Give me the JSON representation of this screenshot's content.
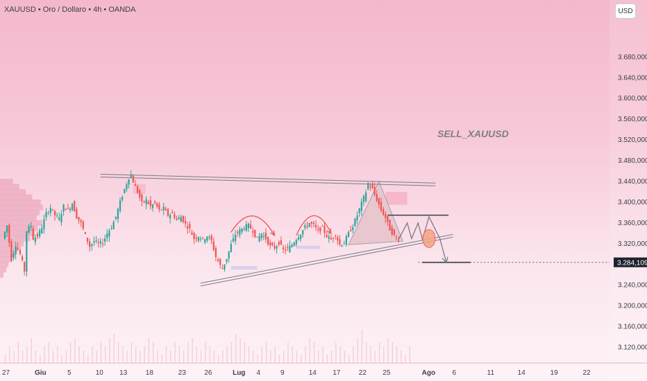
{
  "header": {
    "symbol_line": "XAUUSD • Oro / Dollaro • 4h • OANDA",
    "currency_button": "USD"
  },
  "colors": {
    "bull": "#26a69a",
    "bear": "#ef5350",
    "annotation": "#9598a1",
    "drawing_line": "#787b86",
    "price_tag": "#1e222d",
    "accent_fill": "#f2c4cf"
  },
  "chart_data": {
    "type": "candlestick",
    "symbol": "XAUUSD",
    "title": "XAUUSD • Oro / Dollaro • 4h • OANDA",
    "timeframe": "4h",
    "currency": "USD",
    "ylim": [
      3090,
      3790
    ],
    "y_ticks": [
      "3.680,000",
      "3.640,000",
      "3.600,000",
      "3.560,000",
      "3.520,000",
      "3.480,000",
      "3.440,000",
      "3.400,000",
      "3.360,000",
      "3.320,000",
      "3.240,000",
      "3.200,000",
      "3.160,000",
      "3.120,000"
    ],
    "y_tick_values": [
      3680,
      3640,
      3600,
      3560,
      3520,
      3480,
      3440,
      3400,
      3360,
      3320,
      3240,
      3200,
      3160,
      3120
    ],
    "x_ticks": [
      "27",
      "Giu",
      "5",
      "10",
      "13",
      "18",
      "23",
      "26",
      "Lug",
      "4",
      "9",
      "14",
      "17",
      "22",
      "25",
      "Ago",
      "6",
      "11",
      "14",
      "19",
      "22"
    ],
    "x_tick_bold": [
      "Giu",
      "Lug",
      "Ago"
    ],
    "x_tick_index": [
      0,
      15,
      30,
      43,
      54,
      66,
      81,
      93,
      106,
      117,
      128,
      141,
      152,
      164,
      175,
      193,
      207,
      223,
      237,
      252,
      267
    ],
    "last_price_label": "3.284,109",
    "last_price": 3284.1,
    "annotation_text": "SELL_XAUUSD",
    "ohlc_path": [
      [
        0,
        3330
      ],
      [
        2,
        3355
      ],
      [
        4,
        3290
      ],
      [
        6,
        3318
      ],
      [
        8,
        3300
      ],
      [
        10,
        3268
      ],
      [
        11,
        3345
      ],
      [
        13,
        3355
      ],
      [
        14,
        3330
      ],
      [
        16,
        3335
      ],
      [
        18,
        3352
      ],
      [
        20,
        3378
      ],
      [
        22,
        3390
      ],
      [
        24,
        3375
      ],
      [
        26,
        3368
      ],
      [
        28,
        3392
      ],
      [
        30,
        3385
      ],
      [
        32,
        3398
      ],
      [
        34,
        3372
      ],
      [
        36,
        3360
      ],
      [
        38,
        3336
      ],
      [
        40,
        3315
      ],
      [
        42,
        3325
      ],
      [
        44,
        3320
      ],
      [
        46,
        3322
      ],
      [
        48,
        3340
      ],
      [
        50,
        3352
      ],
      [
        52,
        3372
      ],
      [
        54,
        3400
      ],
      [
        56,
        3425
      ],
      [
        58,
        3448
      ],
      [
        59,
        3452
      ],
      [
        60,
        3440
      ],
      [
        62,
        3420
      ],
      [
        64,
        3398
      ],
      [
        66,
        3404
      ],
      [
        68,
        3392
      ],
      [
        70,
        3398
      ],
      [
        72,
        3384
      ],
      [
        74,
        3388
      ],
      [
        76,
        3375
      ],
      [
        78,
        3378
      ],
      [
        80,
        3366
      ],
      [
        82,
        3372
      ],
      [
        84,
        3358
      ],
      [
        86,
        3348
      ],
      [
        88,
        3330
      ],
      [
        90,
        3335
      ],
      [
        92,
        3328
      ],
      [
        94,
        3335
      ],
      [
        96,
        3325
      ],
      [
        98,
        3295
      ],
      [
        100,
        3278
      ],
      [
        101,
        3272
      ],
      [
        103,
        3292
      ],
      [
        105,
        3318
      ],
      [
        107,
        3338
      ],
      [
        109,
        3345
      ],
      [
        111,
        3352
      ],
      [
        113,
        3355
      ],
      [
        115,
        3345
      ],
      [
        117,
        3328
      ],
      [
        119,
        3340
      ],
      [
        121,
        3330
      ],
      [
        123,
        3315
      ],
      [
        125,
        3312
      ],
      [
        127,
        3322
      ],
      [
        129,
        3308
      ],
      [
        131,
        3310
      ],
      [
        133,
        3318
      ],
      [
        135,
        3330
      ],
      [
        137,
        3340
      ],
      [
        139,
        3352
      ],
      [
        141,
        3360
      ],
      [
        143,
        3355
      ],
      [
        145,
        3345
      ],
      [
        147,
        3350
      ],
      [
        149,
        3335
      ],
      [
        151,
        3328
      ],
      [
        153,
        3338
      ],
      [
        155,
        3318
      ],
      [
        157,
        3322
      ],
      [
        159,
        3340
      ],
      [
        161,
        3355
      ],
      [
        163,
        3375
      ],
      [
        165,
        3398
      ],
      [
        167,
        3420
      ],
      [
        168,
        3436
      ],
      [
        170,
        3425
      ],
      [
        172,
        3405
      ],
      [
        174,
        3385
      ],
      [
        176,
        3370
      ],
      [
        178,
        3348
      ],
      [
        180,
        3335
      ],
      [
        181,
        3330
      ]
    ],
    "volume_profile": [
      [
        3440,
        0.3
      ],
      [
        3430,
        0.45
      ],
      [
        3420,
        0.6
      ],
      [
        3410,
        0.75
      ],
      [
        3400,
        0.95
      ],
      [
        3390,
        1.0
      ],
      [
        3380,
        0.92
      ],
      [
        3370,
        0.85
      ],
      [
        3360,
        0.98
      ],
      [
        3350,
        0.88
      ],
      [
        3340,
        0.8
      ],
      [
        3330,
        0.7
      ],
      [
        3320,
        0.55
      ],
      [
        3310,
        0.42
      ],
      [
        3300,
        0.35
      ],
      [
        3290,
        0.25
      ],
      [
        3280,
        0.2
      ],
      [
        3270,
        0.15
      ],
      [
        3260,
        0.08
      ]
    ],
    "volume_bars": [
      2,
      4,
      3,
      5,
      3,
      4,
      6,
      3,
      2,
      4,
      5,
      3,
      4,
      2,
      3,
      5,
      6,
      4,
      3,
      2,
      4,
      3,
      5,
      4,
      6,
      7,
      5,
      4,
      3,
      5,
      4,
      3,
      4,
      6,
      5,
      3,
      2,
      4,
      3,
      5,
      4,
      3,
      5,
      6,
      4,
      3,
      5,
      4,
      3,
      2,
      3,
      4,
      5,
      7,
      6,
      5,
      4,
      3,
      2,
      4,
      5,
      3,
      4,
      2,
      3,
      5,
      4,
      3,
      2,
      4,
      6,
      5,
      3,
      4,
      2,
      3,
      5,
      4,
      3,
      2,
      4,
      6,
      8,
      5,
      4,
      3,
      5,
      4,
      6,
      5,
      4,
      3,
      2,
      4
    ],
    "drawings": {
      "upper_trendline": {
        "from": [
          44,
          3454
        ],
        "to": [
          198,
          3437
        ]
      },
      "lower_trendline": {
        "from": [
          90,
          3244
        ],
        "to": [
          206,
          3338
        ]
      },
      "resistance_segment": {
        "from": [
          176,
          3375
        ],
        "to": [
          204,
          3375
        ]
      },
      "target_segment": {
        "from": [
          192,
          3284
        ],
        "to": [
          214,
          3284
        ]
      },
      "triangle_pattern": [
        [
          158,
          3318
        ],
        [
          172,
          3440
        ],
        [
          183,
          3325
        ]
      ],
      "arcs": [
        {
          "from": [
            104,
            3342
          ],
          "peak": [
            114,
            3368
          ],
          "to": [
            124,
            3336
          ]
        },
        {
          "from": [
            134,
            3336
          ],
          "peak": [
            142,
            3370
          ],
          "to": [
            150,
            3340
          ]
        }
      ],
      "zigzag": [
        [
          181,
          3328
        ],
        [
          185,
          3360
        ],
        [
          187,
          3330
        ],
        [
          190,
          3360
        ],
        [
          192,
          3328
        ],
        [
          195,
          3372
        ],
        [
          200,
          3330
        ],
        [
          203,
          3284
        ]
      ],
      "circle_marker": [
        195,
        3330
      ],
      "supply_zone": {
        "x0": 175,
        "x1": 185,
        "y0": 3395,
        "y1": 3420
      },
      "demand_zones": [
        {
          "x0": 104,
          "x1": 116,
          "y0": 3270,
          "y1": 3277
        },
        {
          "x0": 134,
          "x1": 145,
          "y0": 3310,
          "y1": 3316
        }
      ]
    }
  }
}
